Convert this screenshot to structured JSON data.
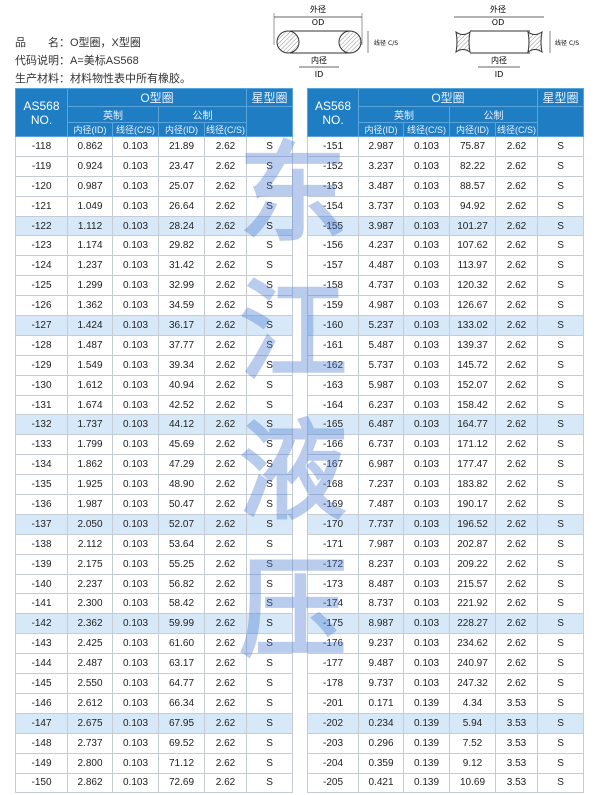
{
  "info": {
    "product_label": "品　　名：",
    "product_value": "O型圈，X型圈",
    "code_label": "代码说明：",
    "code_value": "A=美标AS568",
    "material_label": "生产材料：",
    "material_value": "材料物性表中所有橡胶。"
  },
  "diagram": {
    "od_cn": "外径",
    "od": "OD",
    "id_cn": "内径",
    "id": "ID",
    "cs_cn": "线径",
    "cs": "C/S"
  },
  "table_header": {
    "no": "AS568",
    "no2": "NO.",
    "oring": "O型圈",
    "xring": "星型圈",
    "imperial": "英制",
    "metric": "公制",
    "id": "内径(ID)",
    "cs": "线径(C/S)"
  },
  "watermark": [
    "东",
    "江",
    "液",
    "压"
  ],
  "colors": {
    "header": "#1f7dc4",
    "highlight_row": "#d7e9f8"
  },
  "left_rows": [
    [
      "-118",
      "0.862",
      "0.103",
      "21.89",
      "2.62",
      "S"
    ],
    [
      "-119",
      "0.924",
      "0.103",
      "23.47",
      "2.62",
      "S"
    ],
    [
      "-120",
      "0.987",
      "0.103",
      "25.07",
      "2.62",
      "S"
    ],
    [
      "-121",
      "1.049",
      "0.103",
      "26.64",
      "2.62",
      "S"
    ],
    [
      "-122",
      "1.112",
      "0.103",
      "28.24",
      "2.62",
      "S"
    ],
    [
      "-123",
      "1.174",
      "0.103",
      "29.82",
      "2.62",
      "S"
    ],
    [
      "-124",
      "1.237",
      "0.103",
      "31.42",
      "2.62",
      "S"
    ],
    [
      "-125",
      "1.299",
      "0.103",
      "32.99",
      "2.62",
      "S"
    ],
    [
      "-126",
      "1.362",
      "0.103",
      "34.59",
      "2.62",
      "S"
    ],
    [
      "-127",
      "1.424",
      "0.103",
      "36.17",
      "2.62",
      "S"
    ],
    [
      "-128",
      "1.487",
      "0.103",
      "37.77",
      "2.62",
      "S"
    ],
    [
      "-129",
      "1.549",
      "0.103",
      "39.34",
      "2.62",
      "S"
    ],
    [
      "-130",
      "1.612",
      "0.103",
      "40.94",
      "2.62",
      "S"
    ],
    [
      "-131",
      "1.674",
      "0.103",
      "42.52",
      "2.62",
      "S"
    ],
    [
      "-132",
      "1.737",
      "0.103",
      "44.12",
      "2.62",
      "S"
    ],
    [
      "-133",
      "1.799",
      "0.103",
      "45.69",
      "2.62",
      "S"
    ],
    [
      "-134",
      "1.862",
      "0.103",
      "47.29",
      "2.62",
      "S"
    ],
    [
      "-135",
      "1.925",
      "0.103",
      "48.90",
      "2.62",
      "S"
    ],
    [
      "-136",
      "1.987",
      "0.103",
      "50.47",
      "2.62",
      "S"
    ],
    [
      "-137",
      "2.050",
      "0.103",
      "52.07",
      "2.62",
      "S"
    ],
    [
      "-138",
      "2.112",
      "0.103",
      "53.64",
      "2.62",
      "S"
    ],
    [
      "-139",
      "2.175",
      "0.103",
      "55.25",
      "2.62",
      "S"
    ],
    [
      "-140",
      "2.237",
      "0.103",
      "56.82",
      "2.62",
      "S"
    ],
    [
      "-141",
      "2.300",
      "0.103",
      "58.42",
      "2.62",
      "S"
    ],
    [
      "-142",
      "2.362",
      "0.103",
      "59.99",
      "2.62",
      "S"
    ],
    [
      "-143",
      "2.425",
      "0.103",
      "61.60",
      "2.62",
      "S"
    ],
    [
      "-144",
      "2.487",
      "0.103",
      "63.17",
      "2.62",
      "S"
    ],
    [
      "-145",
      "2.550",
      "0.103",
      "64.77",
      "2.62",
      "S"
    ],
    [
      "-146",
      "2.612",
      "0.103",
      "66.34",
      "2.62",
      "S"
    ],
    [
      "-147",
      "2.675",
      "0.103",
      "67.95",
      "2.62",
      "S"
    ],
    [
      "-148",
      "2.737",
      "0.103",
      "69.52",
      "2.62",
      "S"
    ],
    [
      "-149",
      "2.800",
      "0.103",
      "71.12",
      "2.62",
      "S"
    ],
    [
      "-150",
      "2.862",
      "0.103",
      "72.69",
      "2.62",
      "S"
    ]
  ],
  "right_rows": [
    [
      "-151",
      "2.987",
      "0.103",
      "75.87",
      "2.62",
      "S"
    ],
    [
      "-152",
      "3.237",
      "0.103",
      "82.22",
      "2.62",
      "S"
    ],
    [
      "-153",
      "3.487",
      "0.103",
      "88.57",
      "2.62",
      "S"
    ],
    [
      "-154",
      "3.737",
      "0.103",
      "94.92",
      "2.62",
      "S"
    ],
    [
      "-155",
      "3.987",
      "0.103",
      "101.27",
      "2.62",
      "S"
    ],
    [
      "-156",
      "4.237",
      "0.103",
      "107.62",
      "2.62",
      "S"
    ],
    [
      "-157",
      "4.487",
      "0.103",
      "113.97",
      "2.62",
      "S"
    ],
    [
      "-158",
      "4.737",
      "0.103",
      "120.32",
      "2.62",
      "S"
    ],
    [
      "-159",
      "4.987",
      "0.103",
      "126.67",
      "2.62",
      "S"
    ],
    [
      "-160",
      "5.237",
      "0.103",
      "133.02",
      "2.62",
      "S"
    ],
    [
      "-161",
      "5.487",
      "0.103",
      "139.37",
      "2.62",
      "S"
    ],
    [
      "-162",
      "5.737",
      "0.103",
      "145.72",
      "2.62",
      "S"
    ],
    [
      "-163",
      "5.987",
      "0.103",
      "152.07",
      "2.62",
      "S"
    ],
    [
      "-164",
      "6.237",
      "0.103",
      "158.42",
      "2.62",
      "S"
    ],
    [
      "-165",
      "6.487",
      "0.103",
      "164.77",
      "2.62",
      "S"
    ],
    [
      "-166",
      "6.737",
      "0.103",
      "171.12",
      "2.62",
      "S"
    ],
    [
      "-167",
      "6.987",
      "0.103",
      "177.47",
      "2.62",
      "S"
    ],
    [
      "-168",
      "7.237",
      "0.103",
      "183.82",
      "2.62",
      "S"
    ],
    [
      "-169",
      "7.487",
      "0.103",
      "190.17",
      "2.62",
      "S"
    ],
    [
      "-170",
      "7.737",
      "0.103",
      "196.52",
      "2.62",
      "S"
    ],
    [
      "-171",
      "7.987",
      "0.103",
      "202.87",
      "2.62",
      "S"
    ],
    [
      "-172",
      "8.237",
      "0.103",
      "209.22",
      "2.62",
      "S"
    ],
    [
      "-173",
      "8.487",
      "0.103",
      "215.57",
      "2.62",
      "S"
    ],
    [
      "-174",
      "8.737",
      "0.103",
      "221.92",
      "2.62",
      "S"
    ],
    [
      "-175",
      "8.987",
      "0.103",
      "228.27",
      "2.62",
      "S"
    ],
    [
      "-176",
      "9.237",
      "0.103",
      "234.62",
      "2.62",
      "S"
    ],
    [
      "-177",
      "9.487",
      "0.103",
      "240.97",
      "2.62",
      "S"
    ],
    [
      "-178",
      "9.737",
      "0.103",
      "247.32",
      "2.62",
      "S"
    ],
    [
      "-201",
      "0.171",
      "0.139",
      "4.34",
      "3.53",
      "S"
    ],
    [
      "-202",
      "0.234",
      "0.139",
      "5.94",
      "3.53",
      "S"
    ],
    [
      "-203",
      "0.296",
      "0.139",
      "7.52",
      "3.53",
      "S"
    ],
    [
      "-204",
      "0.359",
      "0.139",
      "9.12",
      "3.53",
      "S"
    ],
    [
      "-205",
      "0.421",
      "0.139",
      "10.69",
      "3.53",
      "S"
    ]
  ],
  "highlighted_rows": [
    "-122",
    "-127",
    "-132",
    "-137",
    "-142",
    "-147",
    "-155",
    "-160",
    "-165",
    "-170",
    "-175",
    "-202"
  ]
}
